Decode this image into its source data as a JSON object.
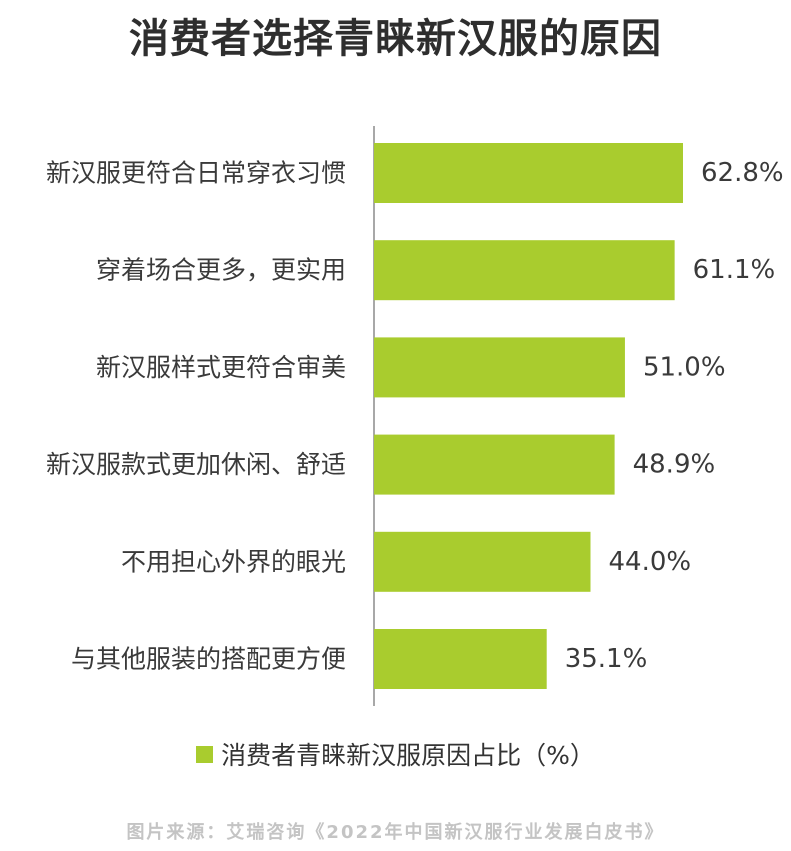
{
  "chart_data": {
    "type": "bar",
    "orientation": "horizontal",
    "title": "消费者选择青睐新汉服的原因",
    "categories": [
      "新汉服更符合日常穿衣习惯",
      "穿着场合更多，更实用",
      "新汉服样式更符合审美",
      "新汉服款式更加休闲、舒适",
      "不用担心外界的眼光",
      "与其他服装的搭配更方便"
    ],
    "series": [
      {
        "name": "消费者青睐新汉服原因占比（%）",
        "values": [
          62.8,
          61.1,
          51.0,
          48.9,
          44.0,
          35.1
        ],
        "value_labels": [
          "62.8%",
          "61.1%",
          "51.0%",
          "48.9%",
          "44.0%",
          "35.1%"
        ],
        "color": "#a9cc2e"
      }
    ],
    "xlim": [
      0,
      70
    ],
    "grid": false,
    "legend_position": "bottom"
  },
  "source": "图片来源：艾瑞咨询《2022年中国新汉服行业发展白皮书》"
}
